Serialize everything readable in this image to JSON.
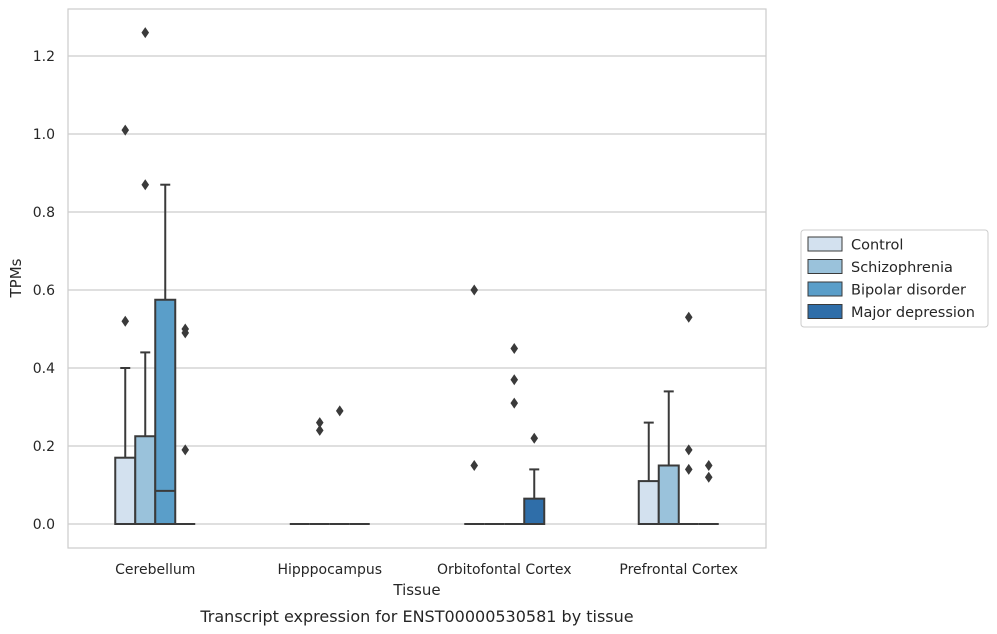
{
  "caption": "Transcript expression for ENST00000530581 by tissue",
  "chart_data": {
    "type": "box",
    "title": "",
    "xlabel": "Tissue",
    "ylabel": "TPMs",
    "ylim": [
      -0.06,
      1.33
    ],
    "yticks": [
      0.0,
      0.2,
      0.4,
      0.6,
      0.8,
      1.0,
      1.2
    ],
    "ytick_labels": [
      "0.0",
      "0.2",
      "0.4",
      "0.6",
      "0.8",
      "1.0",
      "1.2"
    ],
    "grid": "horizontal",
    "legend_position": "outside-right",
    "categories": [
      "Cerebellum",
      "Hipppocampus",
      "Orbitofontal Cortex",
      "Prefrontal Cortex"
    ],
    "series": [
      {
        "name": "Control",
        "color": "#d3e1ef",
        "boxes": [
          {
            "q1": 0.0,
            "median": 0.0,
            "q3": 0.17,
            "whisker_low": 0.0,
            "whisker_high": 0.4,
            "outliers": [
              0.52,
              1.01
            ]
          },
          {
            "q1": 0.0,
            "median": 0.0,
            "q3": 0.0,
            "whisker_low": 0.0,
            "whisker_high": 0.0,
            "outliers": []
          },
          {
            "q1": 0.0,
            "median": 0.0,
            "q3": 0.0,
            "whisker_low": 0.0,
            "whisker_high": 0.0,
            "outliers": [
              0.15,
              0.6
            ]
          },
          {
            "q1": 0.0,
            "median": 0.0,
            "q3": 0.11,
            "whisker_low": 0.0,
            "whisker_high": 0.26,
            "outliers": []
          }
        ]
      },
      {
        "name": "Schizophrenia",
        "color": "#9ac2db",
        "boxes": [
          {
            "q1": 0.0,
            "median": 0.0,
            "q3": 0.225,
            "whisker_low": 0.0,
            "whisker_high": 0.44,
            "outliers": [
              0.87,
              1.26
            ]
          },
          {
            "q1": 0.0,
            "median": 0.0,
            "q3": 0.0,
            "whisker_low": 0.0,
            "whisker_high": 0.0,
            "outliers": [
              0.24,
              0.26
            ]
          },
          {
            "q1": 0.0,
            "median": 0.0,
            "q3": 0.0,
            "whisker_low": 0.0,
            "whisker_high": 0.0,
            "outliers": []
          },
          {
            "q1": 0.0,
            "median": 0.0,
            "q3": 0.15,
            "whisker_low": 0.0,
            "whisker_high": 0.34,
            "outliers": []
          }
        ]
      },
      {
        "name": "Bipolar disorder",
        "color": "#5a9ec9",
        "boxes": [
          {
            "q1": 0.0,
            "median": 0.085,
            "q3": 0.575,
            "whisker_low": 0.0,
            "whisker_high": 0.87,
            "outliers": []
          },
          {
            "q1": 0.0,
            "median": 0.0,
            "q3": 0.0,
            "whisker_low": 0.0,
            "whisker_high": 0.0,
            "outliers": [
              0.29
            ]
          },
          {
            "q1": 0.0,
            "median": 0.0,
            "q3": 0.0,
            "whisker_low": 0.0,
            "whisker_high": 0.0,
            "outliers": [
              0.31,
              0.37,
              0.45
            ]
          },
          {
            "q1": 0.0,
            "median": 0.0,
            "q3": 0.0,
            "whisker_low": 0.0,
            "whisker_high": 0.0,
            "outliers": [
              0.14,
              0.19,
              0.53
            ]
          }
        ]
      },
      {
        "name": "Major depression",
        "color": "#2f6ea9",
        "boxes": [
          {
            "q1": 0.0,
            "median": 0.0,
            "q3": 0.0,
            "whisker_low": 0.0,
            "whisker_high": 0.0,
            "outliers": [
              0.19,
              0.49,
              0.5
            ]
          },
          {
            "q1": 0.0,
            "median": 0.0,
            "q3": 0.0,
            "whisker_low": 0.0,
            "whisker_high": 0.0,
            "outliers": []
          },
          {
            "q1": 0.0,
            "median": 0.0,
            "q3": 0.065,
            "whisker_low": 0.0,
            "whisker_high": 0.14,
            "outliers": [
              0.22
            ]
          },
          {
            "q1": 0.0,
            "median": 0.0,
            "q3": 0.0,
            "whisker_low": 0.0,
            "whisker_high": 0.0,
            "outliers": [
              0.12,
              0.15
            ]
          }
        ]
      }
    ]
  }
}
